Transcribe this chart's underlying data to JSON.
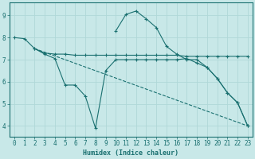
{
  "xlabel": "Humidex (Indice chaleur)",
  "bg_color": "#c8e8e8",
  "grid_color": "#b0d8d8",
  "line_color": "#1a7070",
  "xlim": [
    -0.5,
    23.5
  ],
  "ylim": [
    3.5,
    9.6
  ],
  "xticks": [
    0,
    1,
    2,
    3,
    4,
    5,
    6,
    7,
    8,
    9,
    10,
    11,
    12,
    13,
    14,
    15,
    16,
    17,
    18,
    19,
    20,
    21,
    22,
    23
  ],
  "yticks": [
    4,
    5,
    6,
    7,
    8,
    9
  ],
  "line1_x": [
    0,
    1,
    2,
    3,
    4,
    5,
    6,
    7,
    8,
    9,
    10,
    11,
    12,
    13,
    14,
    15,
    16,
    17,
    18,
    19,
    20,
    21,
    22,
    23
  ],
  "line1_y": [
    8.0,
    7.95,
    7.5,
    7.3,
    7.25,
    7.25,
    7.2,
    7.2,
    7.2,
    7.2,
    7.2,
    7.2,
    7.2,
    7.2,
    7.2,
    7.2,
    7.2,
    7.15,
    7.15,
    7.15,
    7.15,
    7.15,
    7.15,
    7.15
  ],
  "line2_x": [
    10,
    11,
    12,
    13,
    14,
    15,
    16,
    17,
    18,
    19,
    20,
    21,
    22,
    23
  ],
  "line2_y": [
    8.3,
    9.05,
    9.2,
    8.85,
    8.45,
    7.6,
    7.25,
    7.0,
    7.0,
    6.65,
    6.15,
    5.5,
    5.05,
    4.0
  ],
  "line3_x": [
    2,
    3,
    4,
    5,
    6,
    7,
    8,
    9,
    10,
    11,
    12,
    13,
    14,
    15,
    16,
    17,
    18,
    19,
    20,
    21,
    22,
    23
  ],
  "line3_y": [
    7.5,
    7.25,
    7.05,
    5.85,
    5.85,
    5.35,
    3.9,
    6.5,
    7.0,
    7.0,
    7.0,
    7.0,
    7.0,
    7.0,
    7.0,
    7.05,
    6.85,
    6.65,
    6.15,
    5.5,
    5.05,
    4.0
  ],
  "line4_x": [
    2,
    23
  ],
  "line4_y": [
    7.5,
    4.0
  ]
}
